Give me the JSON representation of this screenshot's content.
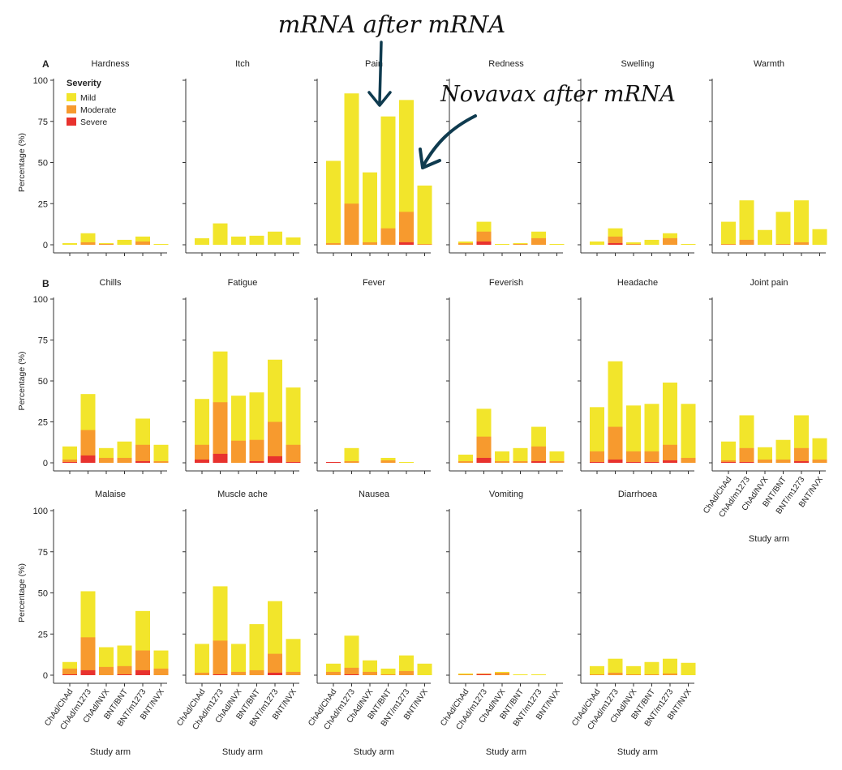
{
  "annotations": {
    "top": "mRNA after mRNA",
    "right": "Novavax after mRNA",
    "arrow_color": "#0f3b4f"
  },
  "panel_letters": [
    "A",
    "B"
  ],
  "legend": {
    "title": "Severity",
    "items": [
      {
        "label": "Mild",
        "color": "#f2e52b"
      },
      {
        "label": "Moderate",
        "color": "#f79a2e"
      },
      {
        "label": "Severe",
        "color": "#e8322e"
      }
    ]
  },
  "axes": {
    "ylabel": "Percentage (%)",
    "xlabel": "Study arm",
    "yticks": [
      0,
      25,
      50,
      75,
      100
    ],
    "ylim": [
      0,
      100
    ],
    "categories": [
      "ChAd/ChAd",
      "ChAd/m1273",
      "ChAd/NVX",
      "BNT/BNT",
      "BNT/m1273",
      "BNT/NVX"
    ]
  },
  "chart_data": {
    "type": "bar",
    "stacked": true,
    "series_colors": {
      "mild": "#f2e52b",
      "moderate": "#f79a2e",
      "severe": "#e8322e"
    },
    "panels": [
      {
        "title": "Hardness",
        "totals": [
          1,
          7,
          1,
          3,
          5,
          0.5
        ],
        "moderate": [
          0,
          1.5,
          0.5,
          0,
          2,
          0
        ],
        "severe": [
          0,
          0,
          0,
          0,
          0,
          0
        ]
      },
      {
        "title": "Itch",
        "totals": [
          4,
          13,
          5,
          5.5,
          8,
          4.5
        ],
        "moderate": [
          0,
          0,
          0,
          0,
          0,
          0
        ],
        "severe": [
          0,
          0,
          0,
          0,
          0,
          0
        ]
      },
      {
        "title": "Pain",
        "totals": [
          51,
          92,
          44,
          78,
          88,
          36
        ],
        "moderate": [
          1,
          25,
          1.5,
          10,
          20,
          0.5
        ],
        "severe": [
          0,
          0,
          0,
          0,
          1.5,
          0
        ]
      },
      {
        "title": "Redness",
        "totals": [
          2,
          14,
          0.5,
          1,
          8,
          0.5
        ],
        "moderate": [
          1,
          8,
          0,
          0.5,
          4,
          0
        ],
        "severe": [
          0,
          2,
          0,
          0,
          0,
          0
        ]
      },
      {
        "title": "Swelling",
        "totals": [
          2,
          10,
          1.5,
          3,
          7,
          0.5
        ],
        "moderate": [
          0,
          5,
          0.5,
          0,
          4,
          0
        ],
        "severe": [
          0,
          1,
          0,
          0,
          0,
          0
        ]
      },
      {
        "title": "Warmth",
        "totals": [
          14,
          27,
          9,
          20,
          27,
          9.5
        ],
        "moderate": [
          0.5,
          3,
          0,
          0.5,
          1.5,
          0
        ],
        "severe": [
          0,
          0,
          0,
          0,
          0,
          0
        ]
      },
      {
        "title": "Chills",
        "totals": [
          10,
          42,
          9,
          13,
          27,
          11
        ],
        "moderate": [
          2,
          20,
          3,
          3,
          11,
          1
        ],
        "severe": [
          0.5,
          4.5,
          0,
          0,
          1,
          0
        ]
      },
      {
        "title": "Fatigue",
        "totals": [
          39,
          68,
          41,
          43,
          63,
          46
        ],
        "moderate": [
          11,
          37,
          13.5,
          14,
          25,
          11
        ],
        "severe": [
          2,
          5.5,
          0,
          1,
          4,
          0.5
        ]
      },
      {
        "title": "Fever",
        "totals": [
          0.5,
          9,
          0,
          3,
          0.5,
          0
        ],
        "moderate": [
          0.5,
          1,
          0,
          1.5,
          0,
          0
        ],
        "severe": [
          0.5,
          0,
          0,
          0,
          0,
          0
        ]
      },
      {
        "title": "Feverish",
        "totals": [
          5,
          33,
          7,
          9,
          22,
          7
        ],
        "moderate": [
          1,
          16,
          1,
          1,
          10,
          1
        ],
        "severe": [
          0,
          3,
          0,
          0,
          1,
          0
        ]
      },
      {
        "title": "Headache",
        "totals": [
          34,
          62,
          35,
          36,
          49,
          36
        ],
        "moderate": [
          7,
          22,
          7,
          7,
          11,
          3
        ],
        "severe": [
          0.5,
          2,
          0.5,
          0.5,
          1.5,
          0
        ]
      },
      {
        "title": "Joint pain",
        "totals": [
          13,
          29,
          9.5,
          14,
          29,
          15
        ],
        "moderate": [
          1.5,
          9,
          2,
          2,
          9,
          2
        ],
        "severe": [
          0.5,
          0.5,
          0,
          0,
          1,
          0
        ]
      },
      {
        "title": "Malaise",
        "totals": [
          8,
          51,
          17,
          18,
          39,
          15
        ],
        "moderate": [
          4,
          23,
          5,
          5.5,
          15,
          4
        ],
        "severe": [
          0.5,
          3,
          0,
          0.5,
          3,
          0
        ]
      },
      {
        "title": "Muscle ache",
        "totals": [
          19,
          54,
          19,
          31,
          45,
          22
        ],
        "moderate": [
          1.5,
          21,
          2,
          3,
          13,
          2
        ],
        "severe": [
          0,
          0.5,
          0,
          0,
          1.5,
          0
        ]
      },
      {
        "title": "Nausea",
        "totals": [
          7,
          24,
          9,
          4,
          12,
          7
        ],
        "moderate": [
          2,
          4.5,
          2,
          0.5,
          2.5,
          0
        ],
        "severe": [
          0,
          0.5,
          0,
          0,
          0,
          0
        ]
      },
      {
        "title": "Vomiting",
        "totals": [
          1,
          1,
          2,
          0.5,
          0.5,
          0
        ],
        "moderate": [
          0.5,
          1,
          1.5,
          0,
          0,
          0
        ],
        "severe": [
          0,
          0.5,
          0,
          0,
          0,
          0
        ]
      },
      {
        "title": "Diarrhoea",
        "totals": [
          5.5,
          10,
          5.5,
          8,
          10,
          7.5
        ],
        "moderate": [
          0.5,
          1.5,
          0.5,
          0.5,
          1,
          0
        ],
        "severe": [
          0,
          0,
          0,
          0,
          0,
          0
        ]
      }
    ]
  }
}
